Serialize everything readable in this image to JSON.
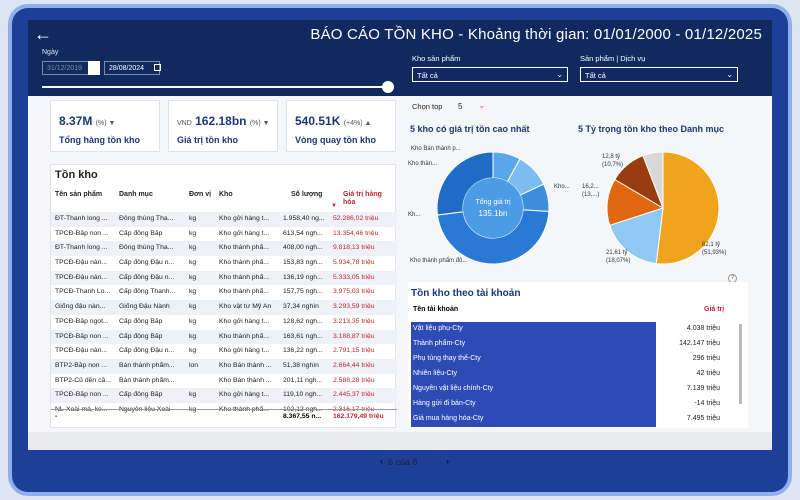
{
  "header": {
    "title": "BÁO CÁO TỒN KHO - Khoảng thời gian: 01/01/2000 - 01/12/2025",
    "date_label": "Ngày",
    "date_from": "31/12/2019",
    "date_to": "28/08/2024",
    "filters": [
      {
        "label": "Kho sản phẩm",
        "value": "Tất cả"
      },
      {
        "label": "Sản phẩm | Dịch vụ",
        "value": "Tất cả"
      }
    ]
  },
  "kpis": [
    {
      "value": "8.37M",
      "suffix": "(%) ▼",
      "label": "Tổng hàng tồn kho"
    },
    {
      "prefix": "VND",
      "value": "162.18bn",
      "suffix": "(%) ▼",
      "label": "Giá trị tồn kho"
    },
    {
      "value": "540.51K",
      "suffix": "(+4%) ▲",
      "label": "Vòng quay tồn kho"
    }
  ],
  "inventory_table": {
    "title": "Tồn kho",
    "columns": [
      "Tên sản phẩm",
      "Danh mục",
      "Đơn vị",
      "Kho",
      "Số lượng",
      "Giá trị hàng hóa"
    ],
    "rows": [
      [
        "ĐT-Thanh long ...",
        "Đông thùng Tha...",
        "kg",
        "Kho gởi hàng t...",
        "1.958,40 ng...",
        "52.286,02 triệu"
      ],
      [
        "TPCĐ-Bắp non ...",
        "Cấp đông Bắp",
        "kg",
        "Kho gởi hàng t...",
        "613,54 ngh...",
        "13.354,46 triệu"
      ],
      [
        "ĐT-Thanh long ...",
        "Đông thùng Tha...",
        "kg",
        "Kho thành phẩ...",
        "408,00 ngh...",
        "9.818,13 triệu"
      ],
      [
        "TPCĐ-Đậu nàn...",
        "Cấp đông Đậu n...",
        "kg",
        "Kho thành phẩ...",
        "153,83 ngh...",
        "5.934,78 triệu"
      ],
      [
        "TPCĐ-Đậu nàn...",
        "Cấp đông Đậu n...",
        "kg",
        "Kho thành phẩ...",
        "136,19 ngh...",
        "5.333,05 triệu"
      ],
      [
        "TPCĐ-Thanh Lo...",
        "Cấp đông Thanh...",
        "kg",
        "Kho thành phẩ...",
        "157,75 ngh...",
        "3.975,03 triệu"
      ],
      [
        "Giống đậu nàn...",
        "Giống Đậu Nành",
        "kg",
        "Kho vật tư Mỹ An",
        "37,34 nghìn",
        "3.293,59 triệu"
      ],
      [
        "TPCĐ-Bắp ngọt...",
        "Cấp đông Bắp",
        "kg",
        "Kho gởi hàng t...",
        "128,62 ngh...",
        "3.213,35 triệu"
      ],
      [
        "TPCĐ-Bắp non ...",
        "Cấp đông Bắp",
        "kg",
        "Kho thành phẩ...",
        "163,61 ngh...",
        "3.188,87 triệu"
      ],
      [
        "TPCĐ-Đậu nàn...",
        "Cấp đông Đậu n...",
        "kg",
        "Kho gởi hàng t...",
        "136,22 ngh...",
        "2.791,15 triệu"
      ],
      [
        "BTP2-Bắp non ...",
        "Bán thành phẩm...",
        "lon",
        "Kho Bán thành ...",
        "51,38 nghìn",
        "2.664,44 triệu"
      ],
      [
        "BTP2-Củ dền cắ...",
        "Bán thành phẩm...",
        "",
        "Kho Bán thành ...",
        "201,11 ngh...",
        "2.588,28 triệu"
      ],
      [
        "TPCĐ-Bắp non ...",
        "Cấp đông Bắp",
        "kg",
        "Kho gởi hàng t...",
        "119,10 ngh...",
        "2.445,37 triệu"
      ],
      [
        "NL-Xoài má, ke...",
        "Nguyên liệu Xoài",
        "kg",
        "Kho thành phẩ...",
        "102,12 ngh...",
        "2.316,17 triệu"
      ]
    ],
    "total_label": "-",
    "total_qty": "8.367,55 n...",
    "total_value": "162.179,49 triệu"
  },
  "top_select": {
    "label": "Chọn top",
    "value": "5"
  },
  "donut": {
    "title": "5 kho có giá trị tồn cao nhất",
    "center_label": "Tổng giá trị",
    "center_value": "135.1bn",
    "labels": [
      "Kho Bán thành p...",
      "Kho thàn...",
      "Kh...",
      "Kho...",
      "Kho thành phẩm đô..."
    ]
  },
  "pie": {
    "title": "5 Tỷ trọng tồn kho theo Danh mục",
    "labels": [
      "12,8 tỷ",
      "(10,7%)",
      "16,2...",
      "(13,...)",
      "21,61 tỷ",
      "(18,07%)",
      "62,1 tỷ",
      "(51,93%)"
    ]
  },
  "chart_data": [
    {
      "type": "pie",
      "title": "5 kho có giá trị tồn cao nhất",
      "categories": [
        "Kho Bán thành p...",
        "Kho thàn...",
        "Kh...",
        "Kho...",
        "Kho thành phẩm đô..."
      ],
      "values": [
        8,
        10,
        8,
        47,
        27
      ]
    },
    {
      "type": "pie",
      "title": "5 Tỷ trọng tồn kho theo Danh mục",
      "values": [
        51.93,
        18.07,
        13.5,
        10.7,
        5.8
      ],
      "colors": [
        "#f0a31c",
        "#8ec8f3",
        "#e0660f",
        "#9a3b10",
        "#d8d8d8"
      ]
    }
  ],
  "tai_khoan": {
    "title": "Tồn kho theo tài khoản",
    "columns": [
      "Tên tài khoản",
      "Giá trị"
    ],
    "rows": [
      [
        "Vật liệu phụ-Cty",
        "4.038 triệu"
      ],
      [
        "Thành phẩm-Cty",
        "142.147 triệu"
      ],
      [
        "Phụ tùng thay thế-Cty",
        "296 triệu"
      ],
      [
        "Nhiên liệu-Cty",
        "42 triệu"
      ],
      [
        "Nguyên vật liệu chính-Cty",
        "7.139 triệu"
      ],
      [
        "Hàng gửi đi bán-Cty",
        "-14 triệu"
      ],
      [
        "Giá mua  hàng hóa-Cty",
        "7.495 triệu"
      ]
    ]
  },
  "pager": {
    "text": "6 của 8"
  }
}
